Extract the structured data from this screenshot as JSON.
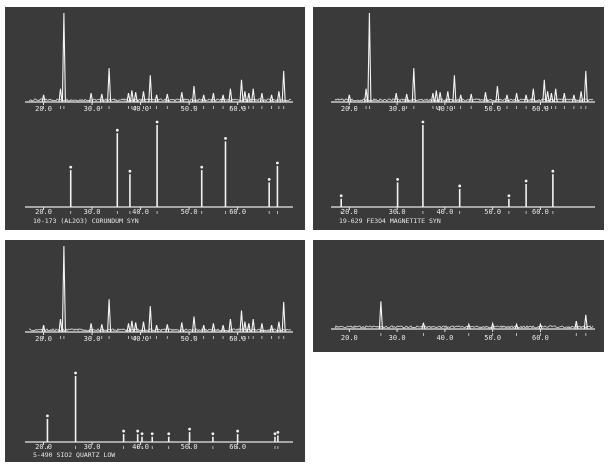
{
  "chart_data": [
    {
      "type": "line",
      "panel": "top-left",
      "subplots": [
        {
          "role": "sample-pattern",
          "tick_labels": [
            "20.0",
            "30.0",
            "40.0",
            "50.0",
            "60.0"
          ],
          "peaks_x": [
            20.0,
            23.5,
            24.2,
            29.8,
            32.0,
            33.5,
            37.5,
            38.2,
            39.0,
            40.6,
            42.0,
            43.3,
            45.5,
            48.5,
            51.0,
            53.0,
            55.0,
            57.0,
            58.5,
            60.8,
            61.5,
            62.3,
            63.2,
            65.0,
            67.0,
            68.5,
            69.5
          ],
          "peaks_y": [
            8,
            15,
            100,
            10,
            9,
            38,
            10,
            13,
            11,
            12,
            30,
            8,
            9,
            11,
            18,
            8,
            10,
            8,
            15,
            25,
            12,
            10,
            15,
            10,
            8,
            12,
            35
          ]
        },
        {
          "role": "reference-pattern",
          "tick_labels": [
            "20.0",
            "30.0",
            "40.0",
            "50.0",
            "60.0"
          ],
          "caption": "10-173  (AL2O3)  CORUNDUM SYN",
          "peaks_x": [
            25.6,
            35.2,
            37.8,
            43.4,
            52.6,
            57.5,
            66.5,
            68.2
          ],
          "peaks_y": [
            45,
            90,
            40,
            100,
            45,
            80,
            30,
            50
          ]
        }
      ]
    },
    {
      "type": "line",
      "panel": "top-right",
      "subplots": [
        {
          "role": "sample-pattern",
          "tick_labels": [
            "20.0",
            "30.0",
            "40.0",
            "50.0",
            "60.0"
          ],
          "peaks_x": [
            20.0,
            23.5,
            24.2,
            29.8,
            32.0,
            33.5,
            37.5,
            38.2,
            39.0,
            40.6,
            42.0,
            43.3,
            45.5,
            48.5,
            51.0,
            53.0,
            55.0,
            57.0,
            58.5,
            60.8,
            61.5,
            62.3,
            63.2,
            65.0,
            67.0,
            68.5,
            69.5
          ],
          "peaks_y": [
            8,
            15,
            100,
            10,
            9,
            38,
            10,
            13,
            11,
            12,
            30,
            8,
            9,
            11,
            18,
            8,
            10,
            8,
            15,
            25,
            12,
            10,
            15,
            10,
            8,
            12,
            35
          ]
        },
        {
          "role": "reference-pattern",
          "tick_labels": [
            "20.0",
            "30.0",
            "40.0",
            "50.0",
            "60.0"
          ],
          "caption": "19-629  FE3O4  MAGNETITE SYN",
          "peaks_x": [
            18.3,
            30.1,
            35.4,
            43.1,
            53.4,
            57.0,
            62.6
          ],
          "peaks_y": [
            10,
            30,
            100,
            22,
            10,
            28,
            40
          ]
        }
      ]
    },
    {
      "type": "line",
      "panel": "bottom-left",
      "subplots": [
        {
          "role": "sample-pattern",
          "tick_labels": [
            "20.0",
            "30.0",
            "40.0",
            "50.0",
            "60.0"
          ],
          "peaks_x": [
            20.0,
            23.5,
            24.2,
            29.8,
            32.0,
            33.5,
            37.5,
            38.2,
            39.0,
            40.6,
            42.0,
            43.3,
            45.5,
            48.5,
            51.0,
            53.0,
            55.0,
            57.0,
            58.5,
            60.8,
            61.5,
            62.3,
            63.2,
            65.0,
            67.0,
            68.5,
            69.5
          ],
          "peaks_y": [
            8,
            15,
            100,
            10,
            9,
            38,
            10,
            13,
            11,
            12,
            30,
            8,
            9,
            11,
            18,
            8,
            10,
            8,
            15,
            25,
            12,
            10,
            15,
            10,
            8,
            12,
            35
          ]
        },
        {
          "role": "reference-pattern",
          "tick_labels": [
            "20.0",
            "30.0",
            "40.0",
            "50.0",
            "60.0"
          ],
          "caption": "5-490  SIO2  QUARTZ LOW",
          "peaks_x": [
            20.8,
            26.6,
            36.5,
            39.4,
            40.3,
            42.4,
            45.8,
            50.1,
            54.9,
            60.0,
            67.7,
            68.3
          ],
          "peaks_y": [
            35,
            100,
            12,
            12,
            8,
            8,
            8,
            15,
            8,
            12,
            8,
            10
          ]
        }
      ]
    },
    {
      "type": "line",
      "panel": "bottom-right",
      "subplots": [
        {
          "role": "sample-pattern",
          "tick_labels": [
            "20.0",
            "30.0",
            "40.0",
            "50.0",
            "60.0"
          ],
          "peaks_x": [
            26.6,
            35.5,
            45.0,
            50.0,
            55.0,
            60.0,
            67.5,
            69.5
          ],
          "peaks_y": [
            35,
            8,
            6,
            7,
            6,
            6,
            10,
            18
          ]
        }
      ]
    }
  ]
}
